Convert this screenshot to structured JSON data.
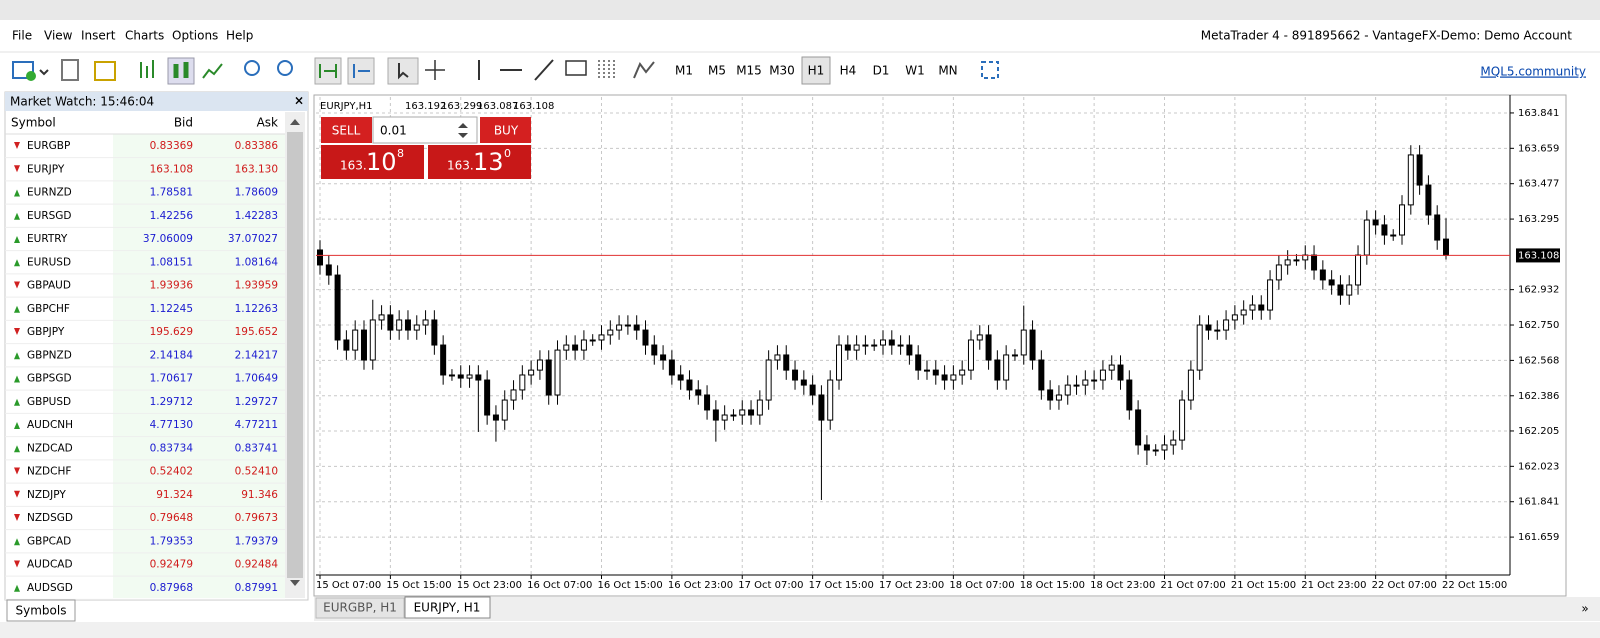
{
  "menu": [
    "File",
    "View",
    "Insert",
    "Charts",
    "Options",
    "Help"
  ],
  "window_title": "MetaTrader 4 - 891895662 - VantageFX-Demo: Demo Account",
  "toolbar": {
    "timeframes": [
      "M1",
      "M5",
      "M15",
      "M30",
      "H1",
      "H4",
      "D1",
      "W1",
      "MN"
    ],
    "active_timeframe": "H1",
    "link": "MQL5.community"
  },
  "market_watch": {
    "title": "Market Watch: 15:46:04",
    "close": "×",
    "columns": [
      "Symbol",
      "Bid",
      "Ask"
    ],
    "rows": [
      [
        "EURGBP",
        "0.83369",
        "0.83386",
        "down"
      ],
      [
        "EURJPY",
        "163.108",
        "163.130",
        "down"
      ],
      [
        "EURNZD",
        "1.78581",
        "1.78609",
        "up"
      ],
      [
        "EURSGD",
        "1.42256",
        "1.42283",
        "up"
      ],
      [
        "EURTRY",
        "37.06009",
        "37.07027",
        "up"
      ],
      [
        "EURUSD",
        "1.08151",
        "1.08164",
        "up"
      ],
      [
        "GBPAUD",
        "1.93936",
        "1.93959",
        "down"
      ],
      [
        "GBPCHF",
        "1.12245",
        "1.12263",
        "up"
      ],
      [
        "GBPJPY",
        "195.629",
        "195.652",
        "down"
      ],
      [
        "GBPNZD",
        "2.14184",
        "2.14217",
        "up"
      ],
      [
        "GBPSGD",
        "1.70617",
        "1.70649",
        "up"
      ],
      [
        "GBPUSD",
        "1.29712",
        "1.29727",
        "up"
      ],
      [
        "AUDCNH",
        "4.77130",
        "4.77211",
        "up"
      ],
      [
        "NZDCAD",
        "0.83734",
        "0.83741",
        "up"
      ],
      [
        "NZDCHF",
        "0.52402",
        "0.52410",
        "down"
      ],
      [
        "NZDJPY",
        "91.324",
        "91.346",
        "down"
      ],
      [
        "NZDSGD",
        "0.79648",
        "0.79673",
        "down"
      ],
      [
        "GBPCAD",
        "1.79353",
        "1.79379",
        "up"
      ],
      [
        "AUDCAD",
        "0.92479",
        "0.92484",
        "down"
      ],
      [
        "AUDSGD",
        "0.87968",
        "0.87991",
        "up"
      ]
    ],
    "tab": "Symbols"
  },
  "trade_panel": {
    "sell": "SELL",
    "buy": "BUY",
    "lot": "0.01",
    "sell_price": {
      "big": "163.",
      "main": "10",
      "sup": "8"
    },
    "buy_price": {
      "big": "163.",
      "main": "13",
      "sup": "0"
    }
  },
  "chart_tabs": [
    "EURGBP, H1",
    "EURJPY, H1"
  ],
  "chart_data": {
    "type": "candlestick",
    "title": "EURJPY,H1",
    "current_price": 163.108,
    "up_color": "#ffffff",
    "down_color": "#000000",
    "current_price_color": "#e03030",
    "grid": true,
    "ylim": [
      161.464,
      163.923
    ],
    "yticks": [
      161.659,
      161.841,
      162.023,
      162.205,
      162.386,
      162.568,
      {
        "value": 162.75,
        "label": "162.750"
      },
      162.932,
      163.295,
      163.477,
      163.659,
      163.841
    ],
    "categories": [
      "15 Oct 07:00",
      null,
      null,
      null,
      null,
      null,
      null,
      null,
      "15 Oct 15:00",
      null,
      null,
      null,
      null,
      null,
      null,
      null,
      "15 Oct 23:00",
      null,
      null,
      null,
      null,
      null,
      null,
      null,
      "16 Oct 07:00",
      null,
      null,
      null,
      null,
      null,
      null,
      null,
      "16 Oct 15:00",
      null,
      null,
      null,
      null,
      null,
      null,
      null,
      "16 Oct 23:00",
      null,
      null,
      null,
      null,
      null,
      null,
      null,
      "17 Oct 07:00",
      null,
      null,
      null,
      null,
      null,
      null,
      null,
      "17 Oct 15:00",
      null,
      null,
      null,
      null,
      null,
      null,
      null,
      "17 Oct 23:00",
      null,
      null,
      null,
      null,
      null,
      null,
      null,
      "18 Oct 07:00",
      null,
      null,
      null,
      null,
      null,
      null,
      null,
      "18 Oct 15:00",
      null,
      null,
      null,
      null,
      null,
      null,
      null,
      "18 Oct 23:00",
      null,
      null,
      null,
      null,
      null,
      null,
      null,
      "21 Oct 07:00",
      null,
      null,
      null,
      null,
      null,
      null,
      null,
      "21 Oct 15:00",
      null,
      null,
      null,
      null,
      null,
      null,
      null,
      "21 Oct 23:00",
      null,
      null,
      null,
      null,
      null,
      null,
      null,
      "22 Oct 07:00",
      null,
      null,
      null,
      null,
      null,
      null,
      null,
      "22 Oct 15:00"
    ],
    "candles": [
      [
        163.136,
        163.186,
        163.009,
        163.059
      ],
      [
        163.059,
        163.109,
        162.957,
        163.007
      ],
      [
        163.007,
        163.057,
        162.623,
        162.673
      ],
      [
        162.673,
        162.723,
        162.571,
        162.621
      ],
      [
        162.621,
        162.774,
        162.571,
        162.724
      ],
      [
        162.724,
        162.774,
        162.52,
        162.57
      ],
      [
        162.57,
        162.88,
        162.52,
        162.776
      ],
      [
        162.776,
        162.852,
        162.726,
        162.802
      ],
      [
        162.802,
        162.852,
        162.674,
        162.724
      ],
      [
        162.724,
        162.826,
        162.674,
        162.776
      ],
      [
        162.776,
        162.826,
        162.674,
        162.724
      ],
      [
        162.724,
        162.8,
        162.674,
        162.75
      ],
      [
        162.75,
        162.826,
        162.7,
        162.776
      ],
      [
        162.776,
        162.826,
        162.597,
        162.647
      ],
      [
        162.647,
        162.697,
        162.443,
        162.493
      ],
      [
        162.493,
        162.523,
        162.463,
        162.493
      ],
      [
        162.493,
        162.543,
        162.427,
        162.477
      ],
      [
        162.477,
        162.543,
        162.427,
        162.493
      ],
      [
        162.493,
        162.543,
        162.2,
        162.467
      ],
      [
        162.467,
        162.517,
        162.237,
        162.287
      ],
      [
        162.287,
        162.337,
        162.15,
        162.261
      ],
      [
        162.261,
        162.414,
        162.211,
        162.364
      ],
      [
        162.364,
        162.466,
        162.314,
        162.416
      ],
      [
        162.416,
        162.543,
        162.366,
        162.493
      ],
      [
        162.493,
        162.568,
        162.443,
        162.518
      ],
      [
        162.518,
        162.62,
        162.468,
        162.57
      ],
      [
        162.57,
        162.62,
        162.34,
        162.39
      ],
      [
        162.39,
        162.671,
        162.34,
        162.621
      ],
      [
        162.621,
        162.697,
        162.571,
        162.647
      ],
      [
        162.647,
        162.697,
        162.571,
        162.621
      ],
      [
        162.621,
        162.723,
        162.571,
        162.673
      ],
      [
        162.673,
        162.703,
        162.643,
        162.673
      ],
      [
        162.673,
        162.749,
        162.623,
        162.699
      ],
      [
        162.699,
        162.774,
        162.649,
        162.724
      ],
      [
        162.724,
        162.8,
        162.674,
        162.75
      ],
      [
        162.75,
        162.8,
        162.7,
        162.75
      ],
      [
        162.75,
        162.8,
        162.674,
        162.724
      ],
      [
        162.724,
        162.774,
        162.597,
        162.647
      ],
      [
        162.647,
        162.697,
        162.546,
        162.596
      ],
      [
        162.596,
        162.646,
        162.52,
        162.57
      ],
      [
        162.57,
        162.62,
        162.443,
        162.493
      ],
      [
        162.493,
        162.543,
        162.417,
        162.467
      ],
      [
        162.467,
        162.517,
        162.366,
        162.416
      ],
      [
        162.416,
        162.466,
        162.34,
        162.39
      ],
      [
        162.39,
        162.44,
        162.263,
        162.313
      ],
      [
        162.313,
        162.363,
        162.15,
        162.261
      ],
      [
        162.261,
        162.337,
        162.211,
        162.287
      ],
      [
        162.287,
        162.317,
        162.257,
        162.287
      ],
      [
        162.287,
        162.363,
        162.237,
        162.313
      ],
      [
        162.313,
        162.363,
        162.237,
        162.287
      ],
      [
        162.287,
        162.414,
        162.237,
        162.364
      ],
      [
        162.364,
        162.62,
        162.314,
        162.57
      ],
      [
        162.57,
        162.646,
        162.52,
        162.596
      ],
      [
        162.596,
        162.646,
        162.468,
        162.518
      ],
      [
        162.518,
        162.568,
        162.417,
        162.467
      ],
      [
        162.467,
        162.517,
        162.391,
        162.441
      ],
      [
        162.441,
        162.491,
        162.34,
        162.39
      ],
      [
        162.39,
        162.44,
        161.85,
        162.261
      ],
      [
        162.261,
        162.517,
        162.211,
        162.467
      ],
      [
        162.467,
        162.697,
        162.417,
        162.647
      ],
      [
        162.647,
        162.697,
        162.571,
        162.621
      ],
      [
        162.621,
        162.697,
        162.571,
        162.647
      ],
      [
        162.647,
        162.697,
        162.597,
        162.647
      ],
      [
        162.647,
        162.677,
        162.617,
        162.647
      ],
      [
        162.647,
        162.723,
        162.597,
        162.673
      ],
      [
        162.673,
        162.723,
        162.597,
        162.647
      ],
      [
        162.647,
        162.697,
        162.597,
        162.647
      ],
      [
        162.647,
        162.697,
        162.546,
        162.596
      ],
      [
        162.596,
        162.646,
        162.468,
        162.518
      ],
      [
        162.518,
        162.568,
        162.468,
        162.518
      ],
      [
        162.518,
        162.568,
        162.443,
        162.493
      ],
      [
        162.493,
        162.543,
        162.417,
        162.467
      ],
      [
        162.467,
        162.543,
        162.417,
        162.493
      ],
      [
        162.493,
        162.568,
        162.443,
        162.518
      ],
      [
        162.518,
        162.723,
        162.468,
        162.673
      ],
      [
        162.673,
        162.749,
        162.623,
        162.699
      ],
      [
        162.699,
        162.749,
        162.52,
        162.57
      ],
      [
        162.57,
        162.62,
        162.417,
        162.467
      ],
      [
        162.467,
        162.646,
        162.417,
        162.596
      ],
      [
        162.596,
        162.626,
        162.566,
        162.596
      ],
      [
        162.596,
        162.85,
        162.546,
        162.724
      ],
      [
        162.724,
        162.774,
        162.52,
        162.57
      ],
      [
        162.57,
        162.62,
        162.366,
        162.416
      ],
      [
        162.416,
        162.466,
        162.314,
        162.364
      ],
      [
        162.364,
        162.44,
        162.314,
        162.39
      ],
      [
        162.39,
        162.491,
        162.34,
        162.441
      ],
      [
        162.441,
        162.491,
        162.391,
        162.441
      ],
      [
        162.441,
        162.517,
        162.391,
        162.467
      ],
      [
        162.467,
        162.517,
        162.417,
        162.467
      ],
      [
        162.467,
        162.568,
        162.417,
        162.518
      ],
      [
        162.518,
        162.594,
        162.468,
        162.544
      ],
      [
        162.544,
        162.594,
        162.417,
        162.467
      ],
      [
        162.467,
        162.517,
        162.263,
        162.313
      ],
      [
        162.313,
        162.363,
        162.083,
        162.133
      ],
      [
        162.133,
        162.183,
        162.03,
        162.107
      ],
      [
        162.107,
        162.137,
        162.077,
        162.107
      ],
      [
        162.107,
        162.183,
        162.057,
        162.133
      ],
      [
        162.133,
        162.208,
        162.083,
        162.158
      ],
      [
        162.158,
        162.414,
        162.108,
        162.364
      ],
      [
        162.364,
        162.568,
        162.314,
        162.518
      ],
      [
        162.518,
        162.8,
        162.468,
        162.75
      ],
      [
        162.75,
        162.8,
        162.674,
        162.724
      ],
      [
        162.724,
        162.774,
        162.674,
        162.724
      ],
      [
        162.724,
        162.826,
        162.674,
        162.776
      ],
      [
        162.776,
        162.852,
        162.726,
        162.802
      ],
      [
        162.802,
        162.877,
        162.752,
        162.827
      ],
      [
        162.827,
        162.903,
        162.777,
        162.853
      ],
      [
        162.853,
        162.903,
        162.777,
        162.827
      ],
      [
        162.827,
        163.032,
        162.777,
        162.982
      ],
      [
        162.982,
        163.109,
        162.932,
        163.059
      ],
      [
        163.059,
        163.135,
        163.009,
        163.085
      ],
      [
        163.085,
        163.115,
        163.055,
        163.085
      ],
      [
        163.085,
        163.16,
        163.035,
        163.11
      ],
      [
        163.11,
        163.16,
        162.983,
        163.033
      ],
      [
        163.033,
        163.083,
        162.932,
        162.982
      ],
      [
        162.982,
        163.032,
        162.906,
        162.956
      ],
      [
        162.956,
        163.006,
        162.854,
        162.904
      ],
      [
        162.904,
        163.006,
        162.854,
        162.956
      ],
      [
        162.956,
        163.16,
        162.906,
        163.11
      ],
      [
        163.11,
        163.34,
        163.06,
        163.29
      ],
      [
        163.29,
        163.34,
        163.215,
        163.265
      ],
      [
        163.265,
        163.315,
        163.163,
        163.213
      ],
      [
        163.213,
        163.243,
        163.183,
        163.213
      ],
      [
        163.213,
        163.418,
        163.163,
        163.368
      ],
      [
        163.368,
        163.675,
        163.318,
        163.625
      ],
      [
        163.625,
        163.675,
        163.42,
        163.47
      ],
      [
        163.47,
        163.52,
        163.266,
        163.316
      ],
      [
        163.316,
        163.366,
        163.137,
        163.187
      ],
      [
        163.192,
        163.299,
        163.087,
        163.108
      ]
    ]
  }
}
